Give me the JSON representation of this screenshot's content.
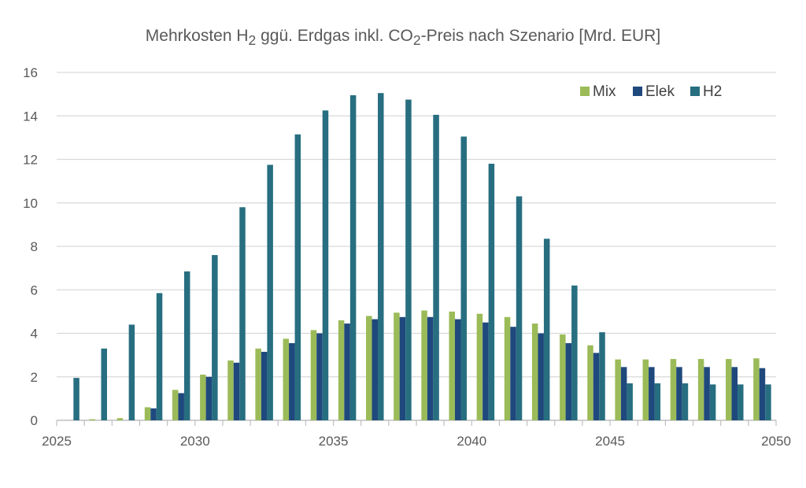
{
  "chart_data": {
    "type": "bar",
    "title": "Mehrkosten H2 ggü. Erdgas inkl. CO2-Preis nach Szenario [Mrd. EUR]",
    "title_parts": {
      "a": "Mehrkosten H",
      "sub1": "2",
      "b": " ggü. Erdgas inkl. CO",
      "sub2": "2",
      "c": "-Preis nach Szenario  [Mrd. EUR]"
    },
    "xlabel": "",
    "ylabel": "",
    "ylim": [
      0,
      16
    ],
    "yticks": [
      0,
      2,
      4,
      6,
      8,
      10,
      12,
      14,
      16
    ],
    "categories": [
      2025,
      2026,
      2027,
      2028,
      2029,
      2030,
      2031,
      2032,
      2033,
      2034,
      2035,
      2036,
      2037,
      2038,
      2039,
      2040,
      2041,
      2042,
      2043,
      2044,
      2045,
      2046,
      2047,
      2048,
      2049,
      2050
    ],
    "xtick_labels": [
      "2025",
      "2030",
      "2035",
      "2040",
      "2045",
      "2050"
    ],
    "grid": "horizontal",
    "legend_position": "top-right",
    "series": [
      {
        "name": "Mix",
        "color": "#9BBB59",
        "values": [
          0,
          0.05,
          0.1,
          0.6,
          1.4,
          2.1,
          2.75,
          3.3,
          3.75,
          4.15,
          4.6,
          4.8,
          4.95,
          5.05,
          5.0,
          4.9,
          4.75,
          4.45,
          3.95,
          3.45,
          2.8,
          2.8,
          2.82,
          2.82,
          2.82,
          2.85
        ]
      },
      {
        "name": "Elek",
        "color": "#1F497D",
        "values": [
          0,
          0,
          0,
          0.55,
          1.25,
          2.0,
          2.65,
          3.15,
          3.55,
          4.0,
          4.45,
          4.65,
          4.75,
          4.75,
          4.65,
          4.5,
          4.3,
          4.0,
          3.55,
          3.1,
          2.45,
          2.45,
          2.45,
          2.45,
          2.45,
          2.4
        ]
      },
      {
        "name": "H2",
        "color": "#276E80",
        "values": [
          1.95,
          3.3,
          4.4,
          5.85,
          6.85,
          7.6,
          9.8,
          11.75,
          13.15,
          14.25,
          14.95,
          15.05,
          14.75,
          14.05,
          13.05,
          11.8,
          10.3,
          8.35,
          6.2,
          4.05,
          1.7,
          1.7,
          1.7,
          1.65,
          1.65,
          1.65
        ]
      }
    ]
  }
}
